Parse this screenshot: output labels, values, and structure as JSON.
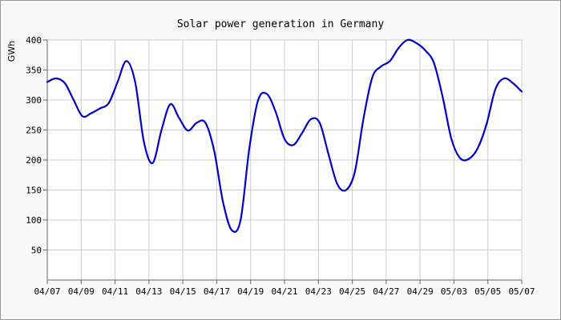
{
  "chart_data": {
    "type": "line",
    "title": "Solar power generation in Germany",
    "ylabel": "GWh",
    "xlabel": "",
    "ylim": [
      0,
      400
    ],
    "yticks": [
      50,
      100,
      150,
      200,
      250,
      300,
      350,
      400
    ],
    "xtick_labels": [
      "04/07",
      "04/09",
      "04/11",
      "04/13",
      "04/15",
      "04/17",
      "04/19",
      "04/21",
      "04/23",
      "04/25",
      "04/27",
      "04/29",
      "05/03",
      "05/05",
      "05/07"
    ],
    "grid": true,
    "line_color": "#0000cc",
    "grid_color": "#cccccc",
    "series": [
      {
        "points": [
          [
            0,
            330
          ],
          [
            0.5,
            336
          ],
          [
            1,
            328
          ],
          [
            1.5,
            300
          ],
          [
            2,
            273
          ],
          [
            2.5,
            278
          ],
          [
            3,
            286
          ],
          [
            3.5,
            295
          ],
          [
            4,
            330
          ],
          [
            4.5,
            365
          ],
          [
            5,
            330
          ],
          [
            5.5,
            230
          ],
          [
            6,
            195
          ],
          [
            6.5,
            250
          ],
          [
            7,
            293
          ],
          [
            7.5,
            270
          ],
          [
            8,
            249
          ],
          [
            8.5,
            262
          ],
          [
            9,
            262
          ],
          [
            9.5,
            215
          ],
          [
            10,
            130
          ],
          [
            10.5,
            83
          ],
          [
            11,
            100
          ],
          [
            11.5,
            220
          ],
          [
            12,
            300
          ],
          [
            12.5,
            310
          ],
          [
            13,
            280
          ],
          [
            13.5,
            235
          ],
          [
            14,
            225
          ],
          [
            14.5,
            245
          ],
          [
            15,
            268
          ],
          [
            15.5,
            262
          ],
          [
            16,
            210
          ],
          [
            16.5,
            160
          ],
          [
            17,
            150
          ],
          [
            17.5,
            180
          ],
          [
            18,
            270
          ],
          [
            18.5,
            338
          ],
          [
            19,
            356
          ],
          [
            19.5,
            365
          ],
          [
            20,
            387
          ],
          [
            20.5,
            400
          ],
          [
            21,
            395
          ],
          [
            21.5,
            383
          ],
          [
            22,
            362
          ],
          [
            22.5,
            305
          ],
          [
            23,
            235
          ],
          [
            23.5,
            203
          ],
          [
            24,
            202
          ],
          [
            24.5,
            220
          ],
          [
            25,
            260
          ],
          [
            25.5,
            318
          ],
          [
            26,
            336
          ],
          [
            26.5,
            328
          ],
          [
            27,
            314
          ]
        ]
      }
    ]
  }
}
